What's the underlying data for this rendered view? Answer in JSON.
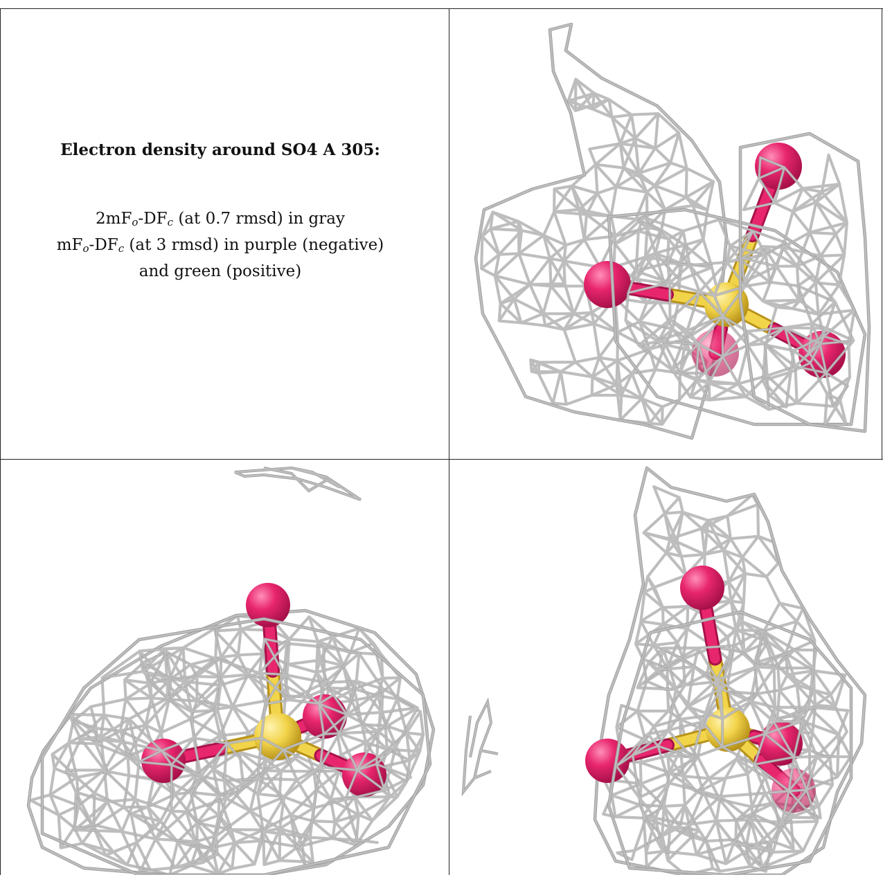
{
  "caption": {
    "title": "Electron density around SO4 A 305:",
    "line1": {
      "pre": "2mF",
      "sub1": "o",
      "mid": "-DF",
      "sub2": "c",
      "post": " (at 0.7 rmsd) in gray"
    },
    "line2": {
      "pre": "mF",
      "sub1": "o",
      "mid": "-DF",
      "sub2": "c",
      "post": " (at 3 rmsd) in purple (negative)"
    },
    "line3": "and green (positive)"
  },
  "colors": {
    "mesh": "#bdbdbd",
    "oxygen": "#e8266e",
    "sulfur": "#f2d44a",
    "border": "#222222"
  },
  "icons": {
    "panel_view_1": "sulfate-density-view",
    "panel_view_2": "sulfate-density-view",
    "panel_view_3": "sulfate-density-view"
  }
}
